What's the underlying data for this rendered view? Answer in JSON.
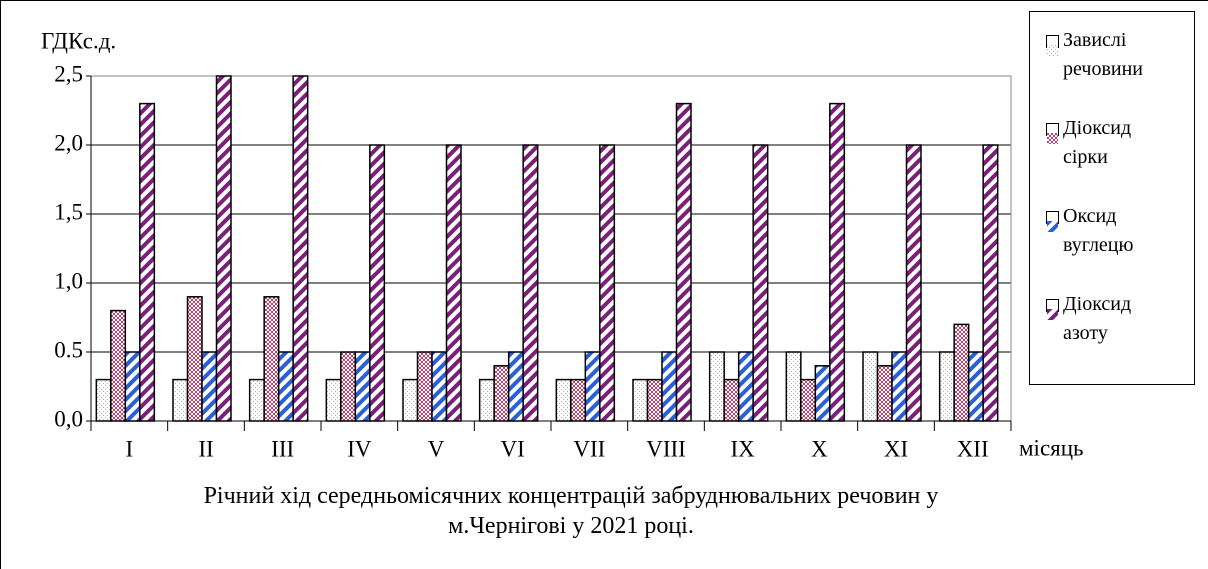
{
  "chart_data": {
    "type": "bar",
    "title": "Річний хід середньомісячних концентрацій забруднювальних речовин   у м.Чернігові у 2021 році.",
    "y_label": "ГДКс.д.",
    "x_label": "місяць",
    "categories": [
      "I",
      "II",
      "III",
      "IV",
      "V",
      "VI",
      "VII",
      "VIII",
      "IX",
      "X",
      "XI",
      "XII"
    ],
    "series": [
      {
        "name": "Завислі речовини",
        "color": "#b0b0b0",
        "values": [
          0.3,
          0.3,
          0.3,
          0.3,
          0.3,
          0.3,
          0.3,
          0.3,
          0.5,
          0.5,
          0.5,
          0.5
        ]
      },
      {
        "name": "Діоксид сірки",
        "color": "#c0406a",
        "values": [
          0.8,
          0.9,
          0.9,
          0.5,
          0.5,
          0.4,
          0.3,
          0.3,
          0.3,
          0.3,
          0.4,
          0.7
        ]
      },
      {
        "name": "Оксид вуглецю",
        "color": "#2a5fd8",
        "values": [
          0.5,
          0.5,
          0.5,
          0.5,
          0.5,
          0.5,
          0.5,
          0.5,
          0.5,
          0.4,
          0.5,
          0.5
        ]
      },
      {
        "name": "Діоксид азоту",
        "color": "#7a1f7a",
        "values": [
          2.3,
          2.5,
          2.5,
          2.0,
          2.0,
          2.0,
          2.0,
          2.3,
          2.0,
          2.3,
          2.0,
          2.0
        ]
      }
    ],
    "ylim": [
      0,
      2.5
    ],
    "yticks": [
      {
        "value": 0,
        "label": "0,0"
      },
      0.5,
      {
        "value": 1,
        "label": "1,0"
      },
      {
        "value": 1.5,
        "label": "1,5"
      },
      {
        "value": 2,
        "label": "2,0"
      },
      {
        "value": 2.5,
        "label": "2,5"
      }
    ],
    "grid": true,
    "legend": "right"
  }
}
